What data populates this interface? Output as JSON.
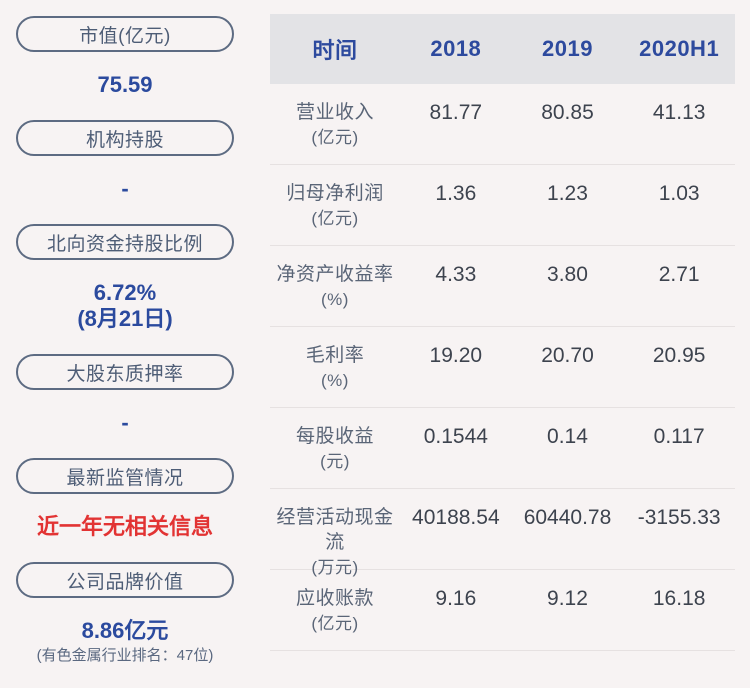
{
  "colors": {
    "page_bg": "#f7f3f3",
    "header_band": "#e3e3e6",
    "accent_blue": "#2b4a9e",
    "alert_red": "#e23333",
    "slate": "#4e5d76"
  },
  "sidebar": {
    "items": [
      {
        "label": "市值(亿元)",
        "value": "75.59",
        "value_color": "#2b4a9e"
      },
      {
        "label": "机构持股",
        "value": "-",
        "value_color": "#2b4a9e"
      },
      {
        "label": "北向资金持股比例",
        "value": "6.72%",
        "subvalue": "(8月21日)",
        "value_color": "#2b4a9e"
      },
      {
        "label": "大股东质押率",
        "value": "-",
        "value_color": "#2b4a9e"
      },
      {
        "label": "最新监管情况",
        "value": "近一年无相关信息",
        "value_color": "#e23333"
      },
      {
        "label": "公司品牌价值",
        "value": "8.86亿元",
        "note": "(有色金属行业排名：47位)",
        "value_color": "#2b4a9e"
      }
    ]
  },
  "table": {
    "header": {
      "time_label": "时间",
      "year_columns": [
        "2018",
        "2019",
        "2020H1"
      ]
    },
    "rows": [
      {
        "name": "营业收入",
        "unit": "(亿元)",
        "values": [
          "81.77",
          "80.85",
          "41.13"
        ]
      },
      {
        "name": "归母净利润",
        "unit": "(亿元)",
        "values": [
          "1.36",
          "1.23",
          "1.03"
        ]
      },
      {
        "name": "净资产收益率",
        "unit": "(%)",
        "values": [
          "4.33",
          "3.80",
          "2.71"
        ]
      },
      {
        "name": "毛利率",
        "unit": "(%)",
        "values": [
          "19.20",
          "20.70",
          "20.95"
        ]
      },
      {
        "name": "每股收益",
        "unit": "(元)",
        "values": [
          "0.1544",
          "0.14",
          "0.117"
        ]
      },
      {
        "name": "经营活动现金流",
        "unit": "(万元)",
        "values": [
          "40188.54",
          "60440.78",
          "-3155.33"
        ]
      },
      {
        "name": "应收账款",
        "unit": "(亿元)",
        "values": [
          "9.16",
          "9.12",
          "16.18"
        ]
      }
    ]
  }
}
